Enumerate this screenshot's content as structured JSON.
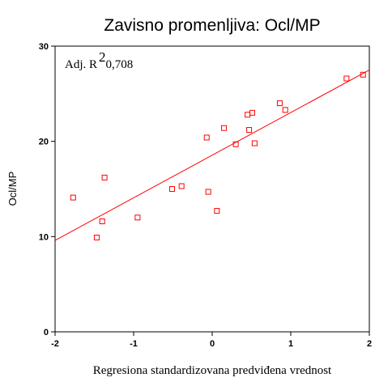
{
  "chart_data": {
    "type": "scatter",
    "title": "Zavisno promenljiva: Ocl/MP",
    "x_label": "Regresiona standardizovana predviđena vrednost",
    "y_label": "Ocl/MP",
    "annotation": {
      "text": "Adj. R",
      "superscript": "2",
      "value": "0,708"
    },
    "xlim": [
      -2,
      2
    ],
    "ylim": [
      0,
      30
    ],
    "xticks": [
      -2,
      -1,
      0,
      1,
      2
    ],
    "yticks": [
      0,
      10,
      20,
      30
    ],
    "color": "#ff0000",
    "x": [
      -1.77,
      -1.37,
      -1.4,
      -1.47,
      -0.95,
      -0.51,
      -0.39,
      -0.07,
      -0.05,
      0.06,
      0.15,
      0.3,
      0.45,
      0.51,
      0.47,
      0.54,
      0.86,
      0.93,
      1.71,
      1.92
    ],
    "values": [
      14.1,
      16.2,
      11.6,
      9.9,
      12.0,
      15.0,
      15.3,
      20.4,
      14.7,
      12.7,
      21.4,
      19.7,
      22.8,
      23.0,
      21.2,
      19.8,
      24.0,
      23.3,
      26.6,
      27.0
    ],
    "fit_line": {
      "x": [
        -2,
        2
      ],
      "values": [
        9.6,
        27.5
      ]
    }
  }
}
